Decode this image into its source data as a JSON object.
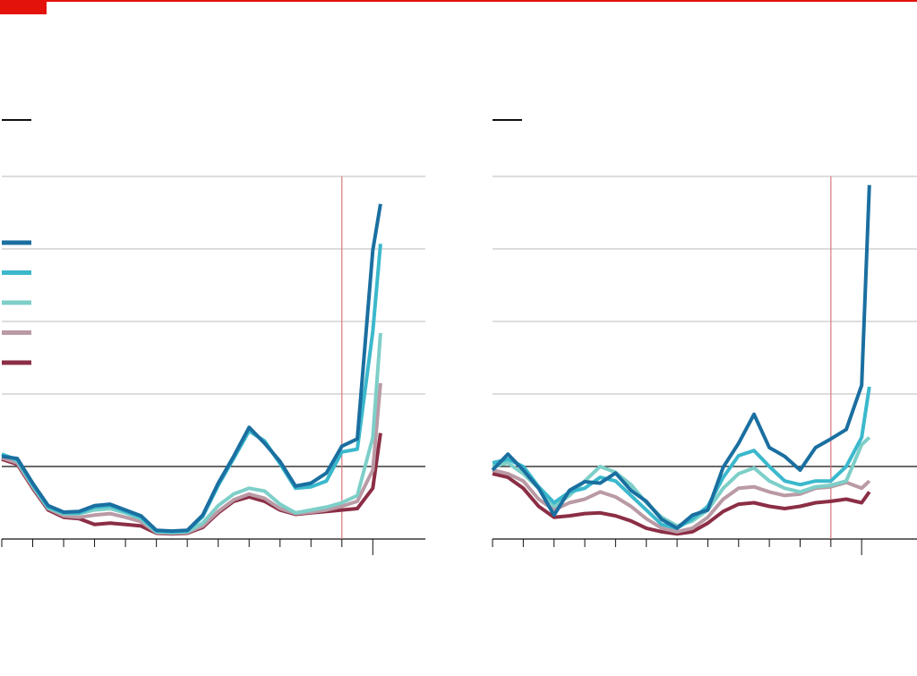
{
  "chart_data": [
    {
      "type": "line",
      "xlim": [
        0,
        13.7
      ],
      "ylim": [
        0,
        5
      ],
      "xticks": [
        0,
        1,
        2,
        3,
        4,
        5,
        6,
        7,
        8,
        9,
        10,
        11,
        12
      ],
      "yticks": [
        0,
        1,
        2,
        3,
        4,
        5
      ],
      "grid": true,
      "reference_line": 1,
      "marker_x": 11,
      "legend": "upper left",
      "x": [
        0,
        0.5,
        1,
        1.5,
        2,
        2.5,
        3,
        3.5,
        4,
        4.5,
        5,
        5.5,
        6,
        6.5,
        7,
        7.5,
        8,
        8.5,
        9,
        9.5,
        10,
        10.5,
        11,
        11.5,
        12,
        12.25
      ],
      "series": [
        {
          "color": "#1a6fa0",
          "values": [
            1.14,
            1.11,
            0.77,
            0.46,
            0.37,
            0.38,
            0.46,
            0.48,
            0.4,
            0.32,
            0.12,
            0.11,
            0.12,
            0.33,
            0.77,
            1.14,
            1.54,
            1.32,
            1.07,
            0.73,
            0.77,
            0.91,
            1.28,
            1.38,
            3.98,
            4.62
          ]
        },
        {
          "color": "#3bb8cc",
          "values": [
            1.17,
            1.09,
            0.75,
            0.44,
            0.36,
            0.36,
            0.44,
            0.46,
            0.38,
            0.3,
            0.11,
            0.1,
            0.11,
            0.31,
            0.74,
            1.11,
            1.49,
            1.35,
            1.04,
            0.7,
            0.72,
            0.8,
            1.2,
            1.24,
            2.86,
            4.07
          ]
        },
        {
          "color": "#7dcfc8",
          "values": [
            1.17,
            1.08,
            0.74,
            0.43,
            0.35,
            0.35,
            0.4,
            0.42,
            0.36,
            0.28,
            0.1,
            0.09,
            0.1,
            0.22,
            0.46,
            0.62,
            0.7,
            0.66,
            0.48,
            0.36,
            0.4,
            0.44,
            0.5,
            0.6,
            1.4,
            2.84
          ]
        },
        {
          "color": "#b99aa5",
          "values": [
            1.12,
            1.05,
            0.72,
            0.42,
            0.32,
            0.3,
            0.33,
            0.35,
            0.3,
            0.24,
            0.09,
            0.08,
            0.09,
            0.18,
            0.38,
            0.54,
            0.62,
            0.56,
            0.42,
            0.35,
            0.37,
            0.4,
            0.45,
            0.52,
            0.95,
            2.15
          ]
        },
        {
          "color": "#8b2e45",
          "values": [
            1.1,
            1.03,
            0.7,
            0.4,
            0.3,
            0.28,
            0.2,
            0.22,
            0.2,
            0.18,
            0.08,
            0.07,
            0.08,
            0.16,
            0.36,
            0.52,
            0.58,
            0.52,
            0.4,
            0.34,
            0.36,
            0.38,
            0.4,
            0.42,
            0.7,
            1.46
          ]
        }
      ]
    },
    {
      "type": "line",
      "xlim": [
        0,
        13.8
      ],
      "ylim": [
        0,
        5
      ],
      "xticks": [
        0,
        1,
        2,
        3,
        4,
        5,
        6,
        7,
        8,
        9,
        10,
        11,
        12
      ],
      "yticks": [
        0,
        1,
        2,
        3,
        4,
        5
      ],
      "grid": true,
      "reference_line": 1,
      "marker_x": 11,
      "x": [
        0,
        0.5,
        1,
        1.5,
        2,
        2.5,
        3,
        3.5,
        4,
        4.5,
        5,
        5.5,
        6,
        6.5,
        7,
        7.5,
        8,
        8.5,
        9,
        9.5,
        10,
        10.5,
        11,
        11.5,
        12,
        12.25
      ],
      "series": [
        {
          "color": "#1a6fa0",
          "values": [
            0.95,
            1.17,
            0.95,
            0.7,
            0.33,
            0.67,
            0.79,
            0.77,
            0.91,
            0.67,
            0.52,
            0.27,
            0.15,
            0.33,
            0.4,
            0.99,
            1.32,
            1.72,
            1.26,
            1.14,
            0.95,
            1.26,
            1.38,
            1.51,
            2.12,
            4.88
          ]
        },
        {
          "color": "#3bb8cc",
          "values": [
            1.05,
            1.1,
            1.0,
            0.72,
            0.5,
            0.65,
            0.7,
            0.85,
            0.8,
            0.6,
            0.4,
            0.2,
            0.15,
            0.28,
            0.45,
            0.85,
            1.15,
            1.22,
            1.0,
            0.8,
            0.75,
            0.8,
            0.8,
            1.0,
            1.4,
            2.1
          ]
        },
        {
          "color": "#7dcfc8",
          "values": [
            1.0,
            1.05,
            0.9,
            0.7,
            0.45,
            0.6,
            0.8,
            1.0,
            0.92,
            0.75,
            0.5,
            0.3,
            0.18,
            0.25,
            0.4,
            0.7,
            0.9,
            0.98,
            0.8,
            0.7,
            0.65,
            0.72,
            0.74,
            0.8,
            1.3,
            1.4
          ]
        },
        {
          "color": "#b99aa5",
          "values": [
            0.95,
            0.9,
            0.8,
            0.55,
            0.4,
            0.5,
            0.55,
            0.65,
            0.58,
            0.45,
            0.28,
            0.15,
            0.1,
            0.15,
            0.3,
            0.55,
            0.7,
            0.72,
            0.65,
            0.6,
            0.62,
            0.7,
            0.72,
            0.78,
            0.7,
            0.8
          ]
        },
        {
          "color": "#8b2e45",
          "values": [
            0.9,
            0.85,
            0.7,
            0.45,
            0.3,
            0.32,
            0.35,
            0.36,
            0.32,
            0.25,
            0.15,
            0.1,
            0.07,
            0.1,
            0.22,
            0.38,
            0.48,
            0.5,
            0.45,
            0.42,
            0.45,
            0.5,
            0.52,
            0.55,
            0.5,
            0.65
          ]
        }
      ]
    }
  ]
}
